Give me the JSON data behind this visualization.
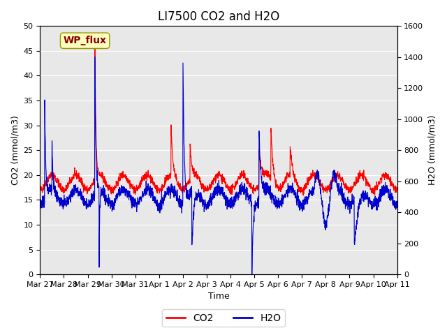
{
  "title": "LI7500 CO2 and H2O",
  "xlabel": "Time",
  "ylabel_left": "CO2 (mmol/m3)",
  "ylabel_right": "H2O (mmol/m3)",
  "ylim_left": [
    0,
    50
  ],
  "ylim_right": [
    0,
    1600
  ],
  "yticks_left": [
    0,
    5,
    10,
    15,
    20,
    25,
    30,
    35,
    40,
    45,
    50
  ],
  "yticks_right": [
    0,
    200,
    400,
    600,
    800,
    1000,
    1200,
    1400,
    1600
  ],
  "xtick_labels": [
    "Mar 27",
    "Mar 28",
    "Mar 29",
    "Mar 30",
    "Mar 31",
    "Apr 1",
    "Apr 2",
    "Apr 3",
    "Apr 4",
    "Apr 5",
    "Apr 6",
    "Apr 7",
    "Apr 8",
    "Apr 9",
    "Apr 10",
    "Apr 11"
  ],
  "annotation_text": "WP_flux",
  "annotation_color": "#8B0000",
  "annotation_bg": "#FFFFC0",
  "bg_color": "#E8E8E8",
  "co2_color": "#FF0000",
  "h2o_color": "#0000CC",
  "title_fontsize": 12,
  "label_fontsize": 9,
  "tick_fontsize": 8
}
